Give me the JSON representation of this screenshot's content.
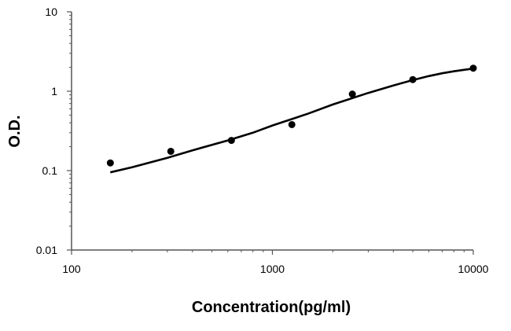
{
  "chart_data": {
    "type": "scatter",
    "xscale": "log",
    "yscale": "log",
    "xlim": [
      100,
      10000
    ],
    "ylim": [
      0.01,
      10
    ],
    "xlabel": "Concentration(pg/ml)",
    "ylabel": "O.D.",
    "x_ticks": [
      "100",
      "1000",
      "10000"
    ],
    "y_ticks": [
      "0.01",
      "0.1",
      "1",
      "10"
    ],
    "grid": false,
    "legend": "none",
    "points": {
      "x": [
        156,
        312,
        625,
        1250,
        2500,
        5000,
        10000
      ],
      "y": [
        0.125,
        0.175,
        0.24,
        0.38,
        0.92,
        1.4,
        1.95
      ]
    },
    "fit_curve": {
      "x": [
        156,
        200,
        300,
        400,
        600,
        800,
        1000,
        1500,
        2000,
        3000,
        4000,
        5000,
        6000,
        7000,
        8000,
        9000,
        10000
      ],
      "y": [
        0.095,
        0.11,
        0.145,
        0.18,
        0.24,
        0.3,
        0.37,
        0.52,
        0.68,
        0.95,
        1.18,
        1.38,
        1.55,
        1.68,
        1.78,
        1.86,
        1.93
      ]
    },
    "colors": {
      "points": "#000000",
      "curve": "#000000",
      "axis": "#555555"
    }
  }
}
